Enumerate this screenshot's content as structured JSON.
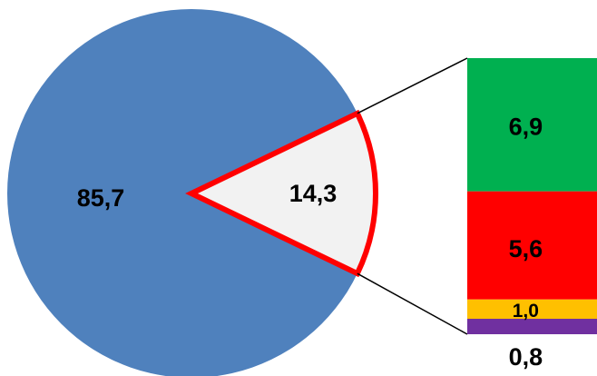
{
  "chart_data": {
    "type": "pie",
    "title": "",
    "slices": [
      {
        "label": "85,7",
        "value": 85.7,
        "color": "#4F81BD"
      },
      {
        "label": "14,3",
        "value": 14.3,
        "color": "#F2F2F2",
        "outline": "#FF0000",
        "exploded_to": "bar"
      }
    ],
    "bar_of_pie": {
      "total_label": "14,3",
      "segments": [
        {
          "label": "6,9",
          "value": 6.9,
          "color": "#00B050"
        },
        {
          "label": "5,6",
          "value": 5.6,
          "color": "#FF0000"
        },
        {
          "label": "1,0",
          "value": 1.0,
          "color": "#FFC000"
        },
        {
          "label": "0,8",
          "value": 0.8,
          "color": "#7030A0"
        }
      ]
    }
  }
}
